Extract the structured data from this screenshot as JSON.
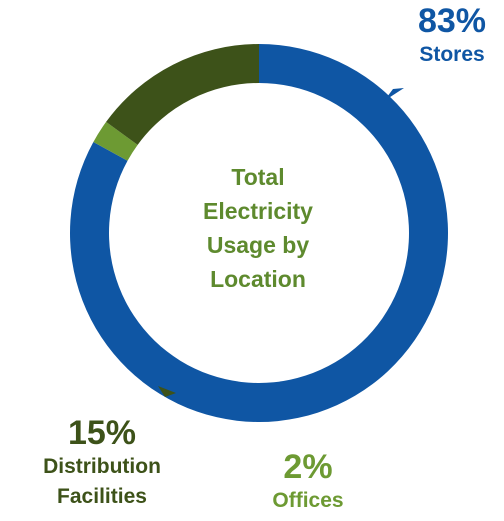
{
  "chart_data": {
    "type": "pie",
    "title": "Total Electricity Usage by Location",
    "title_lines": [
      "Total",
      "Electricity",
      "Usage by",
      "Location"
    ],
    "slices": [
      {
        "label": "Stores",
        "value": 83,
        "value_text": "83%",
        "color": "#0f56a4"
      },
      {
        "label": "Offices",
        "value": 2,
        "value_text": "2%",
        "color": "#6d9a33"
      },
      {
        "label": "Distribution Facilities",
        "label_lines": [
          "Distribution",
          "Facilities"
        ],
        "value": 15,
        "value_text": "15%",
        "color": "#3d5219"
      }
    ],
    "center_text_color": "#5e8a2e"
  }
}
